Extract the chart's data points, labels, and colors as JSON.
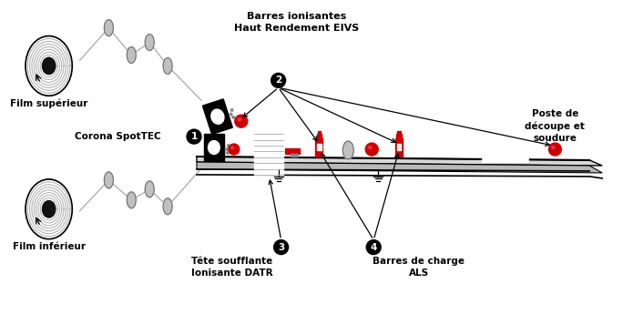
{
  "bg_color": "#ffffff",
  "film_sup_label": "Film supérieur",
  "film_inf_label": "Film inférieur",
  "corona_label": "Corona SpotTEC",
  "barres_label": "Barres ionisantes\nHaut Rendement EIVS",
  "tete_label": "Tête soufflante\nIonisante DATR",
  "charge_label": "Barres de charge\nALS",
  "poste_label": "Poste de\ndécoupe et\nsoudure",
  "num1": "1",
  "num2": "2",
  "num3": "3",
  "num4": "4",
  "red": "#cc0000",
  "black": "#000000",
  "gray": "#b8b8b8",
  "dark_gray": "#555555",
  "light_gray": "#e0e0e0",
  "roller_color": "#c0c0c0",
  "film_line_color": "#aaaaaa",
  "conveyor_top": "#d4d4d4",
  "conveyor_side": "#b0b0b0"
}
